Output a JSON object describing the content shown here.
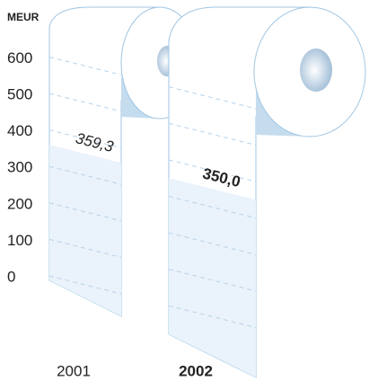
{
  "chart_data": {
    "type": "bar",
    "y_label": "MEUR",
    "categories": [
      "2001",
      "2002"
    ],
    "values": [
      359.3,
      350.0
    ],
    "value_labels": [
      "359,3",
      "350,0"
    ],
    "color": "#eaf2fb",
    "ylim": [
      0,
      600
    ],
    "yticks": [
      0,
      100,
      200,
      300,
      400,
      500,
      600
    ],
    "grid": true
  }
}
